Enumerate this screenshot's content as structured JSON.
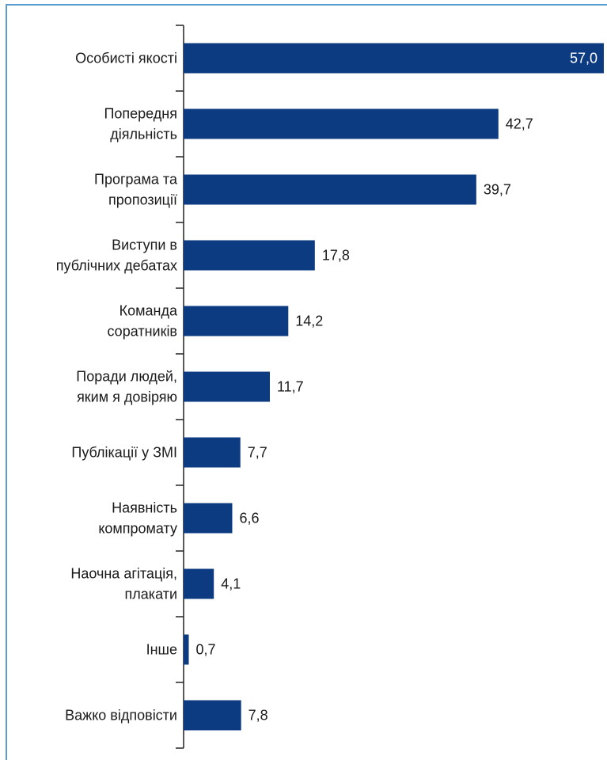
{
  "chart_data": {
    "type": "bar",
    "orientation": "horizontal",
    "categories": [
      "Особисті якості",
      "Попередня\nдіяльність",
      "Програма та\nпропозиції",
      "Виступи в\nпублічних дебатах",
      "Команда\nсоратників",
      "Поради людей,\nяким я довіряю",
      "Публікації у ЗМІ",
      "Наявність\nкомпромату",
      "Наочна агітація,\nплакати",
      "Інше",
      "Важко відповісти"
    ],
    "values": [
      57.0,
      42.7,
      39.7,
      17.8,
      14.2,
      11.7,
      7.7,
      6.6,
      4.1,
      0.7,
      7.8
    ],
    "value_labels": [
      "57,0",
      "42,7",
      "39,7",
      "17,8",
      "14,2",
      "11,7",
      "7,7",
      "6,6",
      "4,1",
      "0,7",
      "7,8"
    ],
    "color": "#0d3b82",
    "xlim": [
      0,
      57
    ]
  }
}
